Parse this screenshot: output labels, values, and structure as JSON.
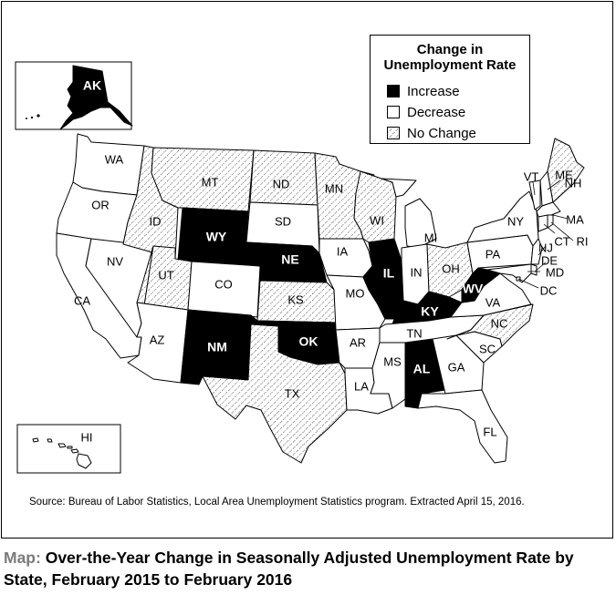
{
  "legend": {
    "title_line1": "Change in",
    "title_line2": "Unemployment Rate",
    "items": [
      {
        "label": "Increase",
        "color": "#000000"
      },
      {
        "label": "Decrease",
        "color": "#ffffff"
      },
      {
        "label": "No Change",
        "color": "hatched"
      }
    ]
  },
  "source": "Source: Bureau of Labor Statistics, Local Area Unemployment Statistics program. Extracted April 15, 2016.",
  "caption": {
    "prefix": "Map:",
    "title": "Over-the-Year Change in Seasonally Adjusted Unemployment Rate by State, February 2015 to February 2016"
  },
  "states": {
    "AK": "Increase",
    "HI": "Decrease",
    "WA": "Decrease",
    "OR": "Decrease",
    "CA": "Decrease",
    "NV": "Decrease",
    "ID": "No Change",
    "MT": "No Change",
    "WY": "Increase",
    "UT": "No Change",
    "AZ": "Decrease",
    "CO": "Decrease",
    "NM": "Increase",
    "ND": "No Change",
    "SD": "Decrease",
    "NE": "Increase",
    "KS": "No Change",
    "OK": "Increase",
    "TX": "No Change",
    "MN": "No Change",
    "IA": "Decrease",
    "MO": "Decrease",
    "AR": "Decrease",
    "LA": "Decrease",
    "WI": "No Change",
    "IL": "Increase",
    "MI": "Decrease",
    "IN": "Decrease",
    "OH": "No Change",
    "KY": "Increase",
    "TN": "Decrease",
    "MS": "Decrease",
    "AL": "Increase",
    "GA": "Decrease",
    "FL": "Decrease",
    "SC": "Decrease",
    "NC": "No Change",
    "VA": "Decrease",
    "WV": "Increase",
    "PA": "Decrease",
    "NY": "Decrease",
    "VT": "Decrease",
    "NH": "Decrease",
    "ME": "No Change",
    "MA": "Decrease",
    "CT": "Decrease",
    "RI": "Decrease",
    "NJ": "Decrease",
    "DE": "Decrease",
    "MD": "Decrease",
    "DC": "Decrease"
  }
}
